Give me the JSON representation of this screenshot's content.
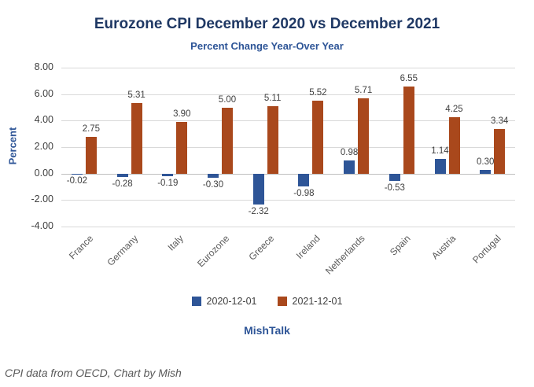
{
  "chart_data": {
    "type": "bar",
    "title": "Eurozone CPI December 2020 vs December 2021",
    "subtitle": "Percent Change Year-Over Year",
    "ylabel": "Percent",
    "xlabel": "",
    "ylim": [
      -4,
      8
    ],
    "grid": true,
    "legend_position": "bottom",
    "yticks": [
      {
        "value": 8,
        "label": "8.00"
      },
      {
        "value": 6,
        "label": "6.00"
      },
      {
        "value": 4,
        "label": "4.00"
      },
      {
        "value": 2,
        "label": "2.00"
      },
      {
        "value": 0,
        "label": "0.00"
      },
      {
        "value": -2,
        "label": "-2.00"
      },
      {
        "value": -4,
        "label": "-4.00"
      }
    ],
    "categories": [
      "France",
      "Germany",
      "Italy",
      "Eurozone",
      "Greece",
      "Ireland",
      "Netherlands",
      "Spain",
      "Austria",
      "Portugal"
    ],
    "series": [
      {
        "name": "2020-12-01",
        "color": "#2e5597",
        "values": [
          -0.02,
          -0.28,
          -0.19,
          -0.3,
          -2.32,
          -0.98,
          0.98,
          -0.53,
          1.14,
          0.3
        ]
      },
      {
        "name": "2021-12-01",
        "color": "#a9481c",
        "values": [
          2.75,
          5.31,
          3.9,
          5.0,
          5.11,
          5.52,
          5.71,
          6.55,
          4.25,
          3.34
        ]
      }
    ],
    "brand": "MishTalk",
    "footnote": "CPI data from OECD, Chart by Mish",
    "colors": {
      "title": "#1f3864",
      "axis_accent": "#2e5597",
      "series_2020": "#2e5597",
      "series_2021": "#a9481c"
    }
  }
}
